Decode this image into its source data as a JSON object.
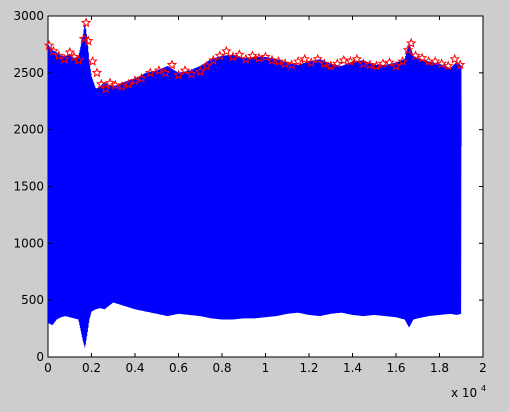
{
  "chart_data": {
    "type": "line",
    "title": "",
    "xlabel": "",
    "ylabel": "",
    "x_multiplier_label": "x 10",
    "x_multiplier_exp": "4",
    "xlim": [
      0,
      2
    ],
    "ylim": [
      0,
      3000
    ],
    "x_ticks": [
      0,
      0.2,
      0.4,
      0.6,
      0.8,
      1,
      1.2,
      1.4,
      1.6,
      1.8,
      2
    ],
    "x_tick_labels": [
      "0",
      "0.2",
      "0.4",
      "0.6",
      "0.8",
      "1",
      "1.2",
      "1.4",
      "1.6",
      "1.8",
      "2"
    ],
    "y_ticks": [
      0,
      500,
      1000,
      1500,
      2000,
      2500,
      3000
    ],
    "y_tick_labels": [
      "0",
      "500",
      "1000",
      "1500",
      "2000",
      "2500",
      "3000"
    ],
    "grid": false,
    "colors": {
      "figure_bg": "#cdcdcd",
      "axes_bg": "#ffffff",
      "signal": "#0000ff",
      "peaks": "#ff0000"
    },
    "series": [
      {
        "kind": "signal-envelope",
        "color": "#0000ff",
        "x": [
          0,
          0.02,
          0.04,
          0.06,
          0.08,
          0.1,
          0.12,
          0.14,
          0.16,
          0.17,
          0.18,
          0.19,
          0.2,
          0.22,
          0.24,
          0.26,
          0.28,
          0.3,
          0.35,
          0.4,
          0.45,
          0.5,
          0.55,
          0.6,
          0.65,
          0.7,
          0.75,
          0.8,
          0.85,
          0.9,
          0.95,
          1.0,
          1.05,
          1.1,
          1.15,
          1.2,
          1.25,
          1.3,
          1.35,
          1.4,
          1.45,
          1.5,
          1.55,
          1.6,
          1.64,
          1.66,
          1.68,
          1.7,
          1.75,
          1.8,
          1.85,
          1.88,
          1.9
        ],
        "upper": [
          2750,
          2700,
          2680,
          2650,
          2650,
          2660,
          2630,
          2640,
          2820,
          2940,
          2800,
          2600,
          2470,
          2360,
          2380,
          2420,
          2390,
          2380,
          2420,
          2450,
          2500,
          2520,
          2560,
          2500,
          2520,
          2560,
          2620,
          2650,
          2660,
          2630,
          2640,
          2640,
          2620,
          2590,
          2570,
          2600,
          2620,
          2580,
          2560,
          2600,
          2610,
          2570,
          2570,
          2590,
          2620,
          2760,
          2650,
          2630,
          2600,
          2580,
          2540,
          2600,
          2560
        ],
        "lower": [
          300,
          280,
          330,
          350,
          360,
          350,
          340,
          330,
          150,
          80,
          200,
          330,
          400,
          420,
          430,
          420,
          450,
          480,
          450,
          420,
          400,
          380,
          360,
          380,
          370,
          360,
          340,
          330,
          330,
          340,
          340,
          350,
          360,
          380,
          390,
          370,
          360,
          380,
          390,
          370,
          360,
          370,
          360,
          350,
          330,
          260,
          330,
          340,
          360,
          370,
          380,
          370,
          380
        ]
      },
      {
        "kind": "peaks",
        "marker": "*",
        "color": "#ff0000",
        "x": [
          0.005,
          0.025,
          0.05,
          0.075,
          0.1,
          0.12,
          0.14,
          0.165,
          0.175,
          0.185,
          0.205,
          0.225,
          0.245,
          0.265,
          0.285,
          0.31,
          0.34,
          0.37,
          0.4,
          0.43,
          0.47,
          0.51,
          0.54,
          0.57,
          0.6,
          0.63,
          0.66,
          0.7,
          0.73,
          0.76,
          0.79,
          0.82,
          0.85,
          0.88,
          0.91,
          0.94,
          0.97,
          1.0,
          1.03,
          1.06,
          1.09,
          1.12,
          1.15,
          1.18,
          1.21,
          1.24,
          1.27,
          1.3,
          1.33,
          1.36,
          1.39,
          1.42,
          1.45,
          1.48,
          1.51,
          1.54,
          1.57,
          1.6,
          1.63,
          1.655,
          1.67,
          1.69,
          1.72,
          1.75,
          1.78,
          1.81,
          1.84,
          1.87,
          1.895
        ],
        "y": [
          2740,
          2690,
          2650,
          2620,
          2680,
          2640,
          2610,
          2800,
          2940,
          2780,
          2600,
          2500,
          2400,
          2360,
          2410,
          2390,
          2380,
          2400,
          2430,
          2450,
          2500,
          2520,
          2500,
          2570,
          2480,
          2520,
          2490,
          2510,
          2560,
          2610,
          2650,
          2690,
          2640,
          2660,
          2620,
          2650,
          2630,
          2640,
          2610,
          2600,
          2580,
          2570,
          2600,
          2620,
          2590,
          2620,
          2580,
          2560,
          2580,
          2610,
          2600,
          2620,
          2580,
          2570,
          2560,
          2580,
          2590,
          2560,
          2600,
          2700,
          2760,
          2650,
          2630,
          2600,
          2600,
          2580,
          2560,
          2620,
          2570
        ]
      }
    ]
  }
}
